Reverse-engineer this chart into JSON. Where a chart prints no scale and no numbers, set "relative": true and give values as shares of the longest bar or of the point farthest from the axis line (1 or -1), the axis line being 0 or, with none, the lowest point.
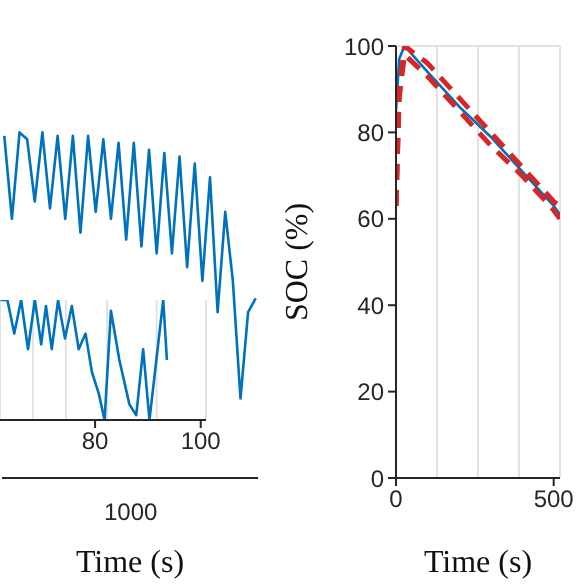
{
  "chart_data": [
    {
      "type": "line",
      "xlabel": "Time (s)",
      "relative": true,
      "annotations": [
        "1000"
      ],
      "categories": [
        null,
        null,
        null,
        null,
        null,
        null,
        null,
        null,
        null,
        null,
        null,
        null,
        null,
        null,
        null,
        null,
        null,
        null,
        null,
        null,
        null,
        null,
        null,
        null,
        null,
        null,
        null,
        null,
        null,
        null,
        null,
        null,
        null,
        null
      ],
      "series": [
        {
          "color": "#0072bd",
          "values": [
            0.99,
            0.75,
            1,
            0.98,
            0.8,
            1,
            0.78,
            0.99,
            0.75,
            0.99,
            0.71,
            0.99,
            0.77,
            0.98,
            0.75,
            0.97,
            0.69,
            0.97,
            0.67,
            0.95,
            0.65,
            0.94,
            0.65,
            0.93,
            0.61,
            0.91,
            0.57,
            0.87,
            0.48,
            0.77,
            0.57,
            0.23,
            0.48,
            0.52
          ]
        }
      ]
    },
    {
      "type": "line",
      "relative": true,
      "grid": "x",
      "xlim": [
        62,
        101
      ],
      "xticks": [
        80,
        100
      ],
      "x": [
        62.1,
        63.4,
        64.7,
        66,
        67.3,
        68.6,
        69.8,
        70.7,
        71.8,
        73,
        74.3,
        75.6,
        76.9,
        78.2,
        79.4,
        80.7,
        81.8,
        83,
        84.6,
        86.5,
        87.8,
        89.1,
        90.3,
        91.6,
        92.9,
        93.6
      ],
      "series": [
        {
          "color": "#0072bd",
          "values": [
            1,
            1,
            0.72,
            1,
            0.59,
            1,
            0.63,
            0.95,
            0.59,
            1,
            0.68,
            0.95,
            0.59,
            0.72,
            0.4,
            0.22,
            0,
            0.91,
            0.5,
            0.13,
            0.04,
            0.59,
            0,
            0.5,
            1,
            0.5
          ]
        }
      ]
    },
    {
      "type": "line",
      "xlabel": "Time (s)",
      "ylabel": "SOC (%)",
      "grid": true,
      "xlim": [
        0,
        520
      ],
      "xticks": [
        0,
        500
      ],
      "ylim": [
        0,
        100
      ],
      "yticks": [
        0,
        20,
        40,
        60,
        80,
        100
      ],
      "x": [
        0,
        10,
        27,
        100,
        200,
        300,
        400,
        500,
        520
      ],
      "series": [
        {
          "color": "#0072bd",
          "line_style": "solid",
          "values": [
            85,
            97,
            100,
            94,
            86,
            79,
            71,
            63,
            61
          ]
        },
        {
          "color": "#d62728",
          "line_style": "dashed",
          "values": [
            63,
            90,
            100,
            96,
            88,
            80,
            72,
            64,
            63
          ]
        },
        {
          "color": "#d62728",
          "line_style": "dashed",
          "values": [
            63,
            88,
            98,
            93,
            85,
            77,
            70,
            62,
            60
          ]
        }
      ]
    }
  ]
}
